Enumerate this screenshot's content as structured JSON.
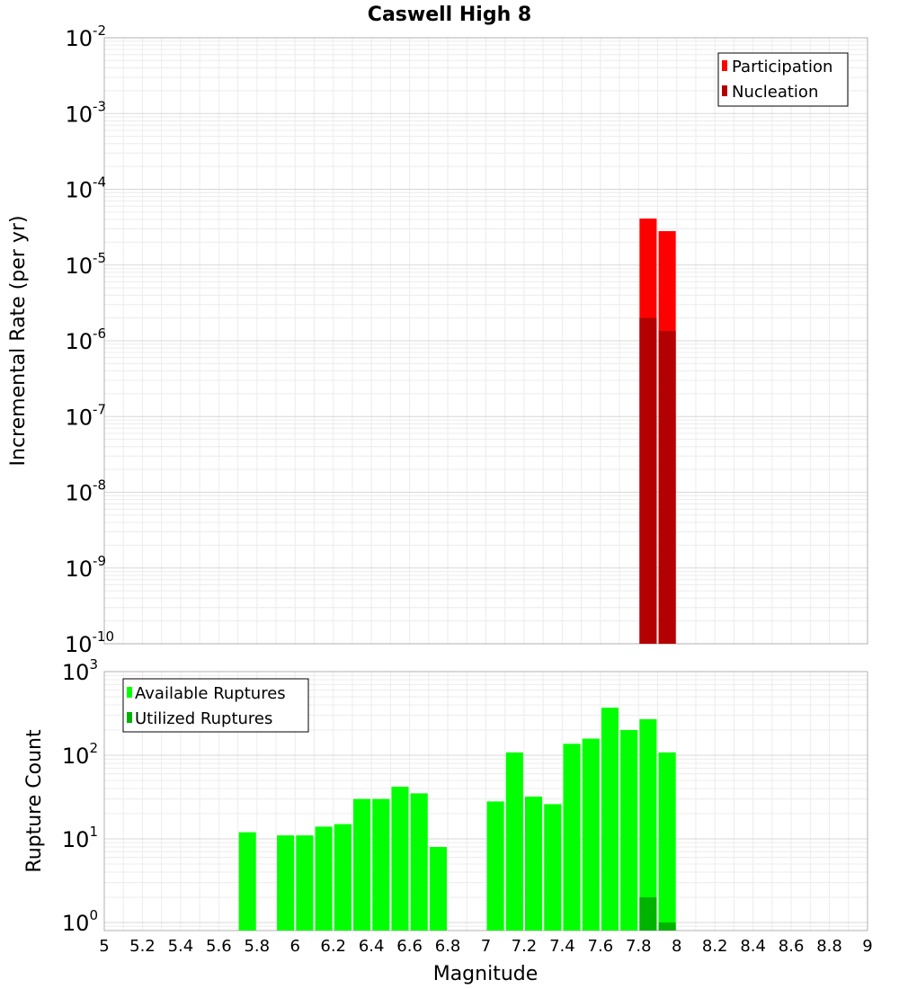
{
  "chart_data": [
    {
      "type": "bar",
      "title": "Caswell High 8",
      "xlabel": "Magnitude",
      "ylabel": "Incremental Rate (per yr)",
      "yscale": "log",
      "xlim": [
        5,
        9
      ],
      "ylim": [
        1e-10,
        0.01
      ],
      "x_ticks": [
        "5",
        "5.2",
        "5.4",
        "5.6",
        "5.8",
        "6",
        "6.2",
        "6.4",
        "6.6",
        "6.8",
        "7",
        "7.2",
        "7.4",
        "7.6",
        "7.8",
        "8",
        "8.2",
        "8.4",
        "8.6",
        "8.8",
        "9"
      ],
      "y_ticks": [
        {
          "base": "10",
          "exp": "-10",
          "value": 1e-10
        },
        {
          "base": "10",
          "exp": "-9",
          "value": 1e-09
        },
        {
          "base": "10",
          "exp": "-8",
          "value": 1e-08
        },
        {
          "base": "10",
          "exp": "-7",
          "value": 1e-07
        },
        {
          "base": "10",
          "exp": "-6",
          "value": 1e-06
        },
        {
          "base": "10",
          "exp": "-5",
          "value": 1e-05
        },
        {
          "base": "10",
          "exp": "-4",
          "value": 0.0001
        },
        {
          "base": "10",
          "exp": "-3",
          "value": 0.001
        },
        {
          "base": "10",
          "exp": "-2",
          "value": 0.01
        }
      ],
      "legend_position": "top-right",
      "series": [
        {
          "name": "Participation",
          "color": "#ff0000",
          "x": [
            7.85,
            7.95
          ],
          "values": [
            4.1e-05,
            2.8e-05
          ]
        },
        {
          "name": "Nucleation",
          "color": "#b30000",
          "x": [
            7.85,
            7.95
          ],
          "values": [
            2e-06,
            1.35e-06
          ]
        }
      ]
    },
    {
      "type": "bar",
      "title": "",
      "xlabel": "Magnitude",
      "ylabel": "Rupture Count",
      "yscale": "log",
      "xlim": [
        5,
        9
      ],
      "ylim": [
        0.8,
        1000
      ],
      "y_ticks": [
        {
          "base": "10",
          "exp": "0",
          "value": 1
        },
        {
          "base": "10",
          "exp": "1",
          "value": 10
        },
        {
          "base": "10",
          "exp": "2",
          "value": 100
        },
        {
          "base": "10",
          "exp": "3",
          "value": 1000
        }
      ],
      "legend_position": "top-left",
      "series": [
        {
          "name": "Available Ruptures",
          "color": "#00ff00",
          "x": [
            5.75,
            5.95,
            6.05,
            6.15,
            6.25,
            6.35,
            6.45,
            6.55,
            6.65,
            6.75,
            7.05,
            7.15,
            7.25,
            7.35,
            7.45,
            7.55,
            7.65,
            7.75,
            7.85,
            7.95
          ],
          "values": [
            12,
            11,
            11,
            14,
            15,
            30,
            30,
            42,
            35,
            8,
            28,
            108,
            32,
            26,
            137,
            158,
            370,
            200,
            270,
            108
          ]
        },
        {
          "name": "Utilized Ruptures",
          "color": "#00b300",
          "x": [
            7.85,
            7.95
          ],
          "values": [
            2,
            1
          ]
        }
      ]
    }
  ]
}
